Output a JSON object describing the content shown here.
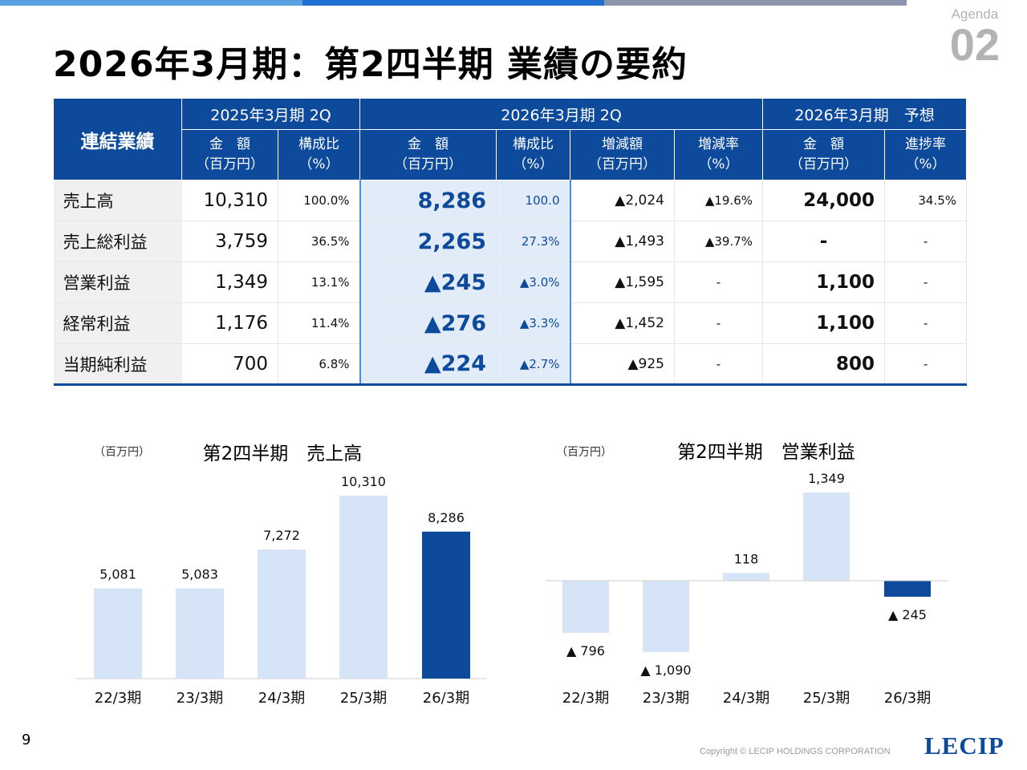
{
  "colors": {
    "accent": "#0d4a9c",
    "light_bar": "#d5e4f6",
    "highlight_col": "#e2ecf8",
    "bar1": "#5aa0e0",
    "bar2": "#1f6fd1",
    "bar3": "#8a94aa"
  },
  "agenda": {
    "label": "Agenda",
    "number": "02"
  },
  "title": "2026年3月期：第2四半期 業績の要約",
  "table": {
    "corner": "連結業績",
    "groups": [
      "2025年3月期 2Q",
      "2026年3月期 2Q",
      "2026年3月期　予想"
    ],
    "subheaders": [
      [
        "金　額",
        "（百万円）"
      ],
      [
        "構成比",
        "（%）"
      ],
      [
        "金　額",
        "（百万円）"
      ],
      [
        "構成比",
        "（%）"
      ],
      [
        "増減額",
        "（百万円）"
      ],
      [
        "増減率",
        "（%）"
      ],
      [
        "金　額",
        "（百万円）"
      ],
      [
        "進捗率",
        "（%）"
      ]
    ],
    "rows": [
      {
        "label": "売上高",
        "prev_amount": "10,310",
        "prev_ratio": "100.0%",
        "cur_amount": "8,286",
        "cur_ratio": "100.0",
        "change": "▲2,024",
        "change_rate": "▲19.6%",
        "fc_amount": "24,000",
        "progress": "34.5%"
      },
      {
        "label": "売上総利益",
        "prev_amount": "3,759",
        "prev_ratio": "36.5%",
        "cur_amount": "2,265",
        "cur_ratio": "27.3%",
        "change": "▲1,493",
        "change_rate": "▲39.7%",
        "fc_amount": "-",
        "progress": "-"
      },
      {
        "label": "営業利益",
        "prev_amount": "1,349",
        "prev_ratio": "13.1%",
        "cur_amount": "▲245",
        "cur_ratio": "▲3.0%",
        "change": "▲1,595",
        "change_rate": "-",
        "fc_amount": "1,100",
        "progress": "-"
      },
      {
        "label": "経常利益",
        "prev_amount": "1,176",
        "prev_ratio": "11.4%",
        "cur_amount": "▲276",
        "cur_ratio": "▲3.3%",
        "change": "▲1,452",
        "change_rate": "-",
        "fc_amount": "1,100",
        "progress": "-"
      },
      {
        "label": "当期純利益",
        "prev_amount": "700",
        "prev_ratio": "6.8%",
        "cur_amount": "▲224",
        "cur_ratio": "▲2.7%",
        "change": "▲925",
        "change_rate": "-",
        "fc_amount": "800",
        "progress": "-"
      }
    ]
  },
  "chart_data": [
    {
      "type": "bar",
      "title": "第2四半期　売上高",
      "unit": "（百万円）",
      "categories": [
        "22/3期",
        "23/3期",
        "24/3期",
        "25/3期",
        "26/3期"
      ],
      "values": [
        5081,
        5083,
        7272,
        10310,
        8286
      ],
      "labels": [
        "5,081",
        "5,083",
        "7,272",
        "10,310",
        "8,286"
      ],
      "highlight_index": 4,
      "ylim": [
        0,
        10310
      ]
    },
    {
      "type": "bar",
      "title": "第2四半期　営業利益",
      "unit": "（百万円）",
      "categories": [
        "22/3期",
        "23/3期",
        "24/3期",
        "25/3期",
        "26/3期"
      ],
      "values": [
        -796,
        -1090,
        118,
        1349,
        -245
      ],
      "labels": [
        "▲ 796",
        "▲ 1,090",
        "118",
        "1,349",
        "▲ 245"
      ],
      "highlight_index": 4,
      "ylim": [
        -1090,
        1349
      ]
    }
  ],
  "footer": {
    "page": "9",
    "copyright": "Copyright © LECIP HOLDINGS CORPORATION",
    "logo": "LECIP"
  }
}
